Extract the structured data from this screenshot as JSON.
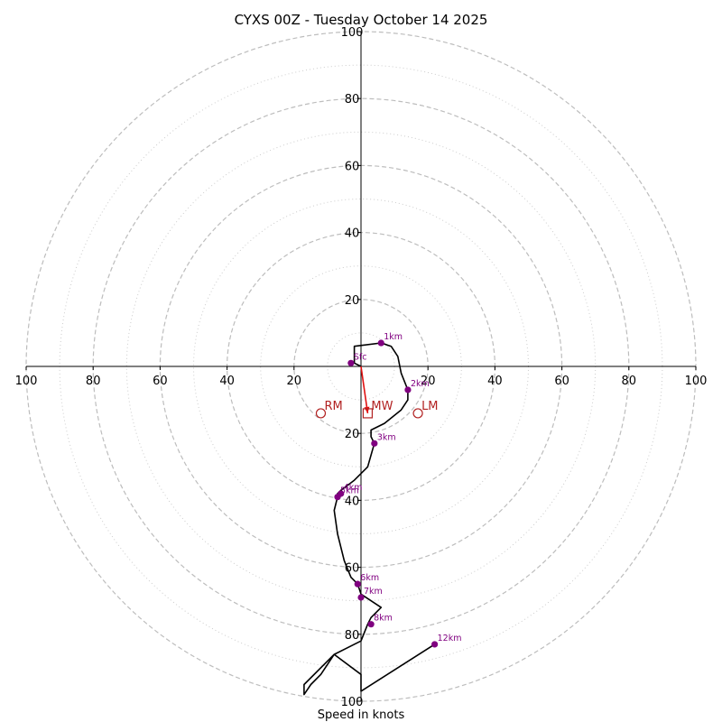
{
  "chart_data": {
    "type": "hodograph",
    "title": "CYXS 00Z - Tuesday October 14 2025",
    "xlabel": "Speed in knots",
    "max_speed": 100,
    "ring_major": [
      20,
      40,
      60,
      80,
      100
    ],
    "ring_minor": [
      10,
      30,
      50,
      70,
      90
    ],
    "tick_labels": {
      "left": [
        "100",
        "80",
        "60",
        "40",
        "20"
      ],
      "right": [
        "20",
        "40",
        "60",
        "80",
        "100"
      ],
      "up": [
        "20",
        "40",
        "60",
        "80",
        "100"
      ],
      "down": [
        "20",
        "40",
        "60",
        "80",
        "100"
      ]
    },
    "trace": [
      [
        0,
        0
      ],
      [
        -2,
        1
      ],
      [
        -2,
        6
      ],
      [
        6,
        7
      ],
      [
        9,
        6
      ],
      [
        11,
        3
      ],
      [
        12,
        -2
      ],
      [
        14,
        -7
      ],
      [
        14,
        -10
      ],
      [
        12,
        -13
      ],
      [
        7,
        -17
      ],
      [
        3,
        -19
      ],
      [
        3,
        -21
      ],
      [
        4,
        -23
      ],
      [
        2,
        -30
      ],
      [
        -2,
        -34
      ],
      [
        -6,
        -37
      ],
      [
        -7,
        -38
      ],
      [
        -7,
        -39
      ],
      [
        -8,
        -43
      ],
      [
        -7,
        -50
      ],
      [
        -5,
        -58
      ],
      [
        -3,
        -63
      ],
      [
        -1,
        -65
      ],
      [
        0,
        -68
      ],
      [
        6,
        -72
      ],
      [
        3,
        -75
      ],
      [
        2,
        -77
      ],
      [
        0,
        -82
      ],
      [
        -8,
        -86
      ],
      [
        -15,
        -93
      ],
      [
        -17,
        -95
      ],
      [
        -17,
        -98
      ],
      [
        -15,
        -95
      ],
      [
        -12,
        -92
      ],
      [
        -8,
        -86
      ],
      [
        0,
        -92
      ],
      [
        0,
        -97
      ],
      [
        22,
        -83
      ]
    ],
    "points": [
      {
        "label": "Sfc",
        "u": -3,
        "v": 1
      },
      {
        "label": "1km",
        "u": 6,
        "v": 7
      },
      {
        "label": "2km",
        "u": 14,
        "v": -7
      },
      {
        "label": "3km",
        "u": 4,
        "v": -23
      },
      {
        "label": "4km",
        "u": -6,
        "v": -38
      },
      {
        "label": "5km",
        "u": -7,
        "v": -39
      },
      {
        "label": "6km",
        "u": -1,
        "v": -65
      },
      {
        "label": "7km",
        "u": 0,
        "v": -69
      },
      {
        "label": "8km",
        "u": 3,
        "v": -77
      },
      {
        "label": "12km",
        "u": 22,
        "v": -83
      }
    ],
    "motions": [
      {
        "label": "RM",
        "u": -12,
        "v": -14,
        "marker": "circle"
      },
      {
        "label": "MW",
        "u": 2,
        "v": -14,
        "marker": "square"
      },
      {
        "label": "LM",
        "u": 17,
        "v": -14,
        "marker": "circle"
      }
    ],
    "mean_wind_arrow": {
      "u": 2,
      "v": -14
    }
  }
}
